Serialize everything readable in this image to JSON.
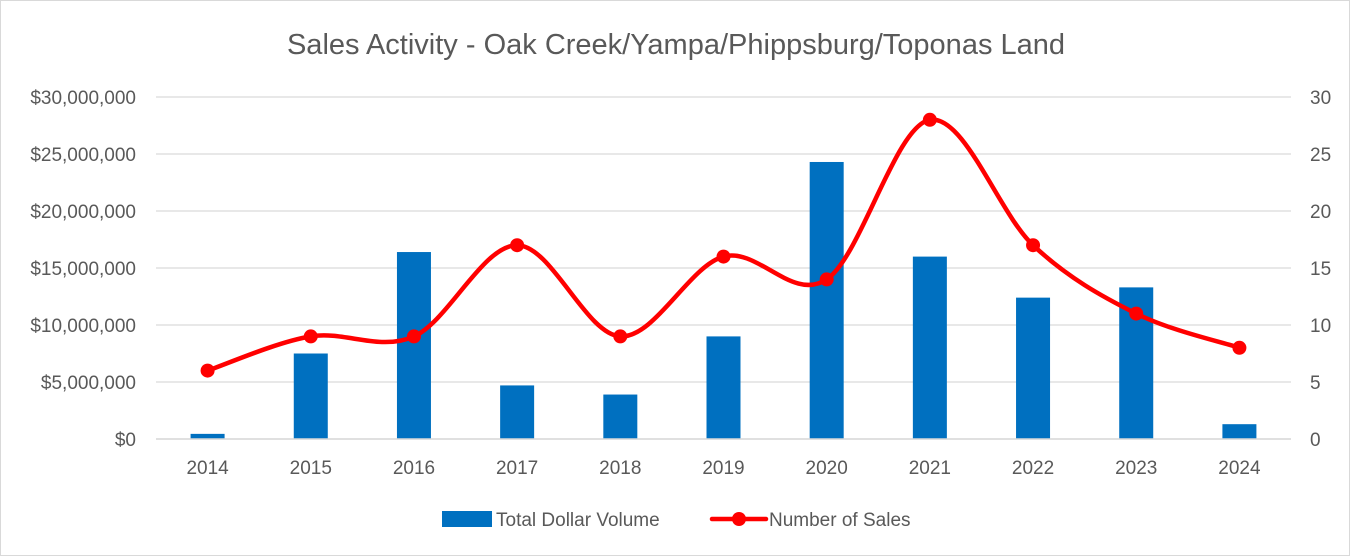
{
  "chart_data": {
    "type": "bar+line",
    "title": "Sales Activity - Oak Creek/Yampa/Phippsburg/Toponas Land",
    "categories": [
      "2014",
      "2015",
      "2016",
      "2017",
      "2018",
      "2019",
      "2020",
      "2021",
      "2022",
      "2023",
      "2024"
    ],
    "series": [
      {
        "name": "Total Dollar Volume",
        "type": "bar",
        "axis": "left",
        "color": "#0070c0",
        "values": [
          450000,
          7500000,
          16400000,
          4700000,
          3900000,
          9000000,
          24300000,
          16000000,
          12400000,
          13300000,
          1300000
        ]
      },
      {
        "name": "Number of Sales",
        "type": "line",
        "smooth": true,
        "axis": "right",
        "color": "#ff0000",
        "values": [
          6,
          9,
          9,
          17,
          9,
          16,
          14,
          28,
          17,
          11,
          8
        ]
      }
    ],
    "y_left": {
      "min": 0,
      "max": 30000000,
      "ticks": [
        0,
        5000000,
        10000000,
        15000000,
        20000000,
        25000000,
        30000000
      ],
      "tick_labels": [
        "$0",
        "$5,000,000",
        "$10,000,000",
        "$15,000,000",
        "$20,000,000",
        "$25,000,000",
        "$30,000,000"
      ]
    },
    "y_right": {
      "min": 0,
      "max": 30,
      "ticks": [
        0,
        5,
        10,
        15,
        20,
        25,
        30
      ],
      "tick_labels": [
        "0",
        "5",
        "10",
        "15",
        "20",
        "25",
        "30"
      ]
    },
    "xlabel": "",
    "ylabel": "",
    "grid": true,
    "legend_position": "bottom",
    "gridline_color": "#d9d9d9"
  }
}
